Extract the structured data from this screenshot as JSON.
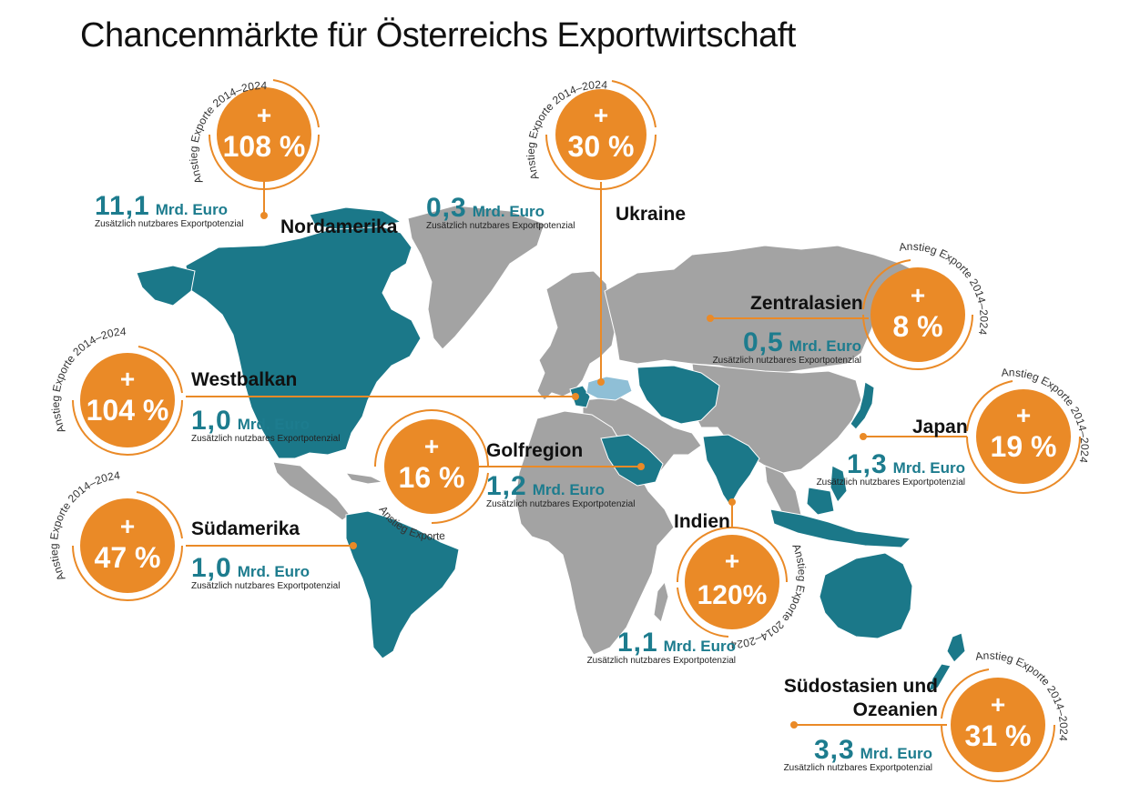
{
  "title": "Chancenmärkte für Österreichs Exportwirtschaft",
  "arc_label": "Anstieg Exporte 2014–2024",
  "plus_sign": "+",
  "unit": "Mrd. Euro",
  "subtext": "Zusätzlich nutzbares Exportpotenzial",
  "colors": {
    "orange": "#ea8a27",
    "teal": "#1b7889",
    "grey": "#a3a3a3",
    "highlight": "#8fbfd6"
  },
  "markets": [
    {
      "id": "nordamerika",
      "name": "Nordamerika",
      "growth": "108 %",
      "amount": "11,1"
    },
    {
      "id": "ukraine",
      "name": "Ukraine",
      "growth": "30 %",
      "amount": "0,3"
    },
    {
      "id": "zentralasien",
      "name": "Zentralasien",
      "growth": "8 %",
      "amount": "0,5"
    },
    {
      "id": "westbalkan",
      "name": "Westbalkan",
      "growth": "104 %",
      "amount": "1,0"
    },
    {
      "id": "japan",
      "name": "Japan",
      "growth": "19 %",
      "amount": "1,3"
    },
    {
      "id": "golfregion",
      "name": "Golfregion",
      "growth": "16 %",
      "amount": "1,2"
    },
    {
      "id": "suedamerika",
      "name": "Südamerika",
      "growth": "47 %",
      "amount": "1,0"
    },
    {
      "id": "indien",
      "name": "Indien",
      "growth": "120%",
      "amount": "1,1"
    },
    {
      "id": "suedostasien",
      "name": "Südostasien und Ozeanien",
      "growth": "31 %",
      "amount": "3,3"
    }
  ]
}
